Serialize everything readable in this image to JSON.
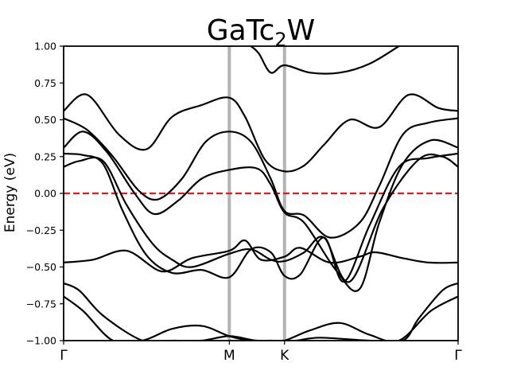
{
  "chart_data": {
    "type": "line",
    "title": {
      "main_before": "GaTc",
      "subscript": "2",
      "main_after": "W"
    },
    "xlabel": "",
    "ylabel": "Energy (eV)",
    "ylim": [
      -1.0,
      1.0
    ],
    "x_range": [
      0,
      2.0
    ],
    "yticks": [
      -1.0,
      -0.75,
      -0.5,
      -0.25,
      0.0,
      0.25,
      0.5,
      0.75,
      1.0
    ],
    "ytick_labels": [
      "−1.00",
      "−0.75",
      "−0.50",
      "−0.25",
      "0.00",
      "0.25",
      "0.50",
      "0.75",
      "1.00"
    ],
    "high_symmetry_points": [
      {
        "label": "Γ",
        "x": 0.0
      },
      {
        "label": "M",
        "x": 0.84
      },
      {
        "label": "K",
        "x": 1.12
      },
      {
        "label": "Γ",
        "x": 2.0
      }
    ],
    "fermi_level": 0.0,
    "grid": false,
    "colors": {
      "bands": "#000000",
      "fermi": "#e31a1c",
      "hsp_lines": "#b3b3b3"
    },
    "series": [
      {
        "x": [
          0.0,
          0.08,
          0.2,
          0.4,
          0.55,
          0.7,
          0.84,
          0.98,
          1.12,
          1.18,
          1.3,
          1.55,
          1.72,
          1.8,
          1.92,
          2.0
        ],
        "values": [
          -0.61,
          -0.66,
          -0.83,
          -1.0,
          -1.0,
          -1.0,
          -0.97,
          -1.0,
          -1.0,
          -1.0,
          -0.98,
          -1.0,
          -1.0,
          -0.85,
          -0.66,
          -0.61
        ]
      },
      {
        "x": [
          0.0,
          0.1,
          0.25,
          0.4,
          0.55,
          0.7,
          0.84,
          0.95,
          1.05,
          1.12,
          1.25,
          1.4,
          1.55,
          1.7,
          1.86,
          2.0
        ],
        "values": [
          -0.7,
          -0.8,
          -1.0,
          -1.0,
          -0.92,
          -0.9,
          -0.97,
          -1.0,
          -1.0,
          -1.0,
          -0.93,
          -0.88,
          -0.96,
          -1.0,
          -0.8,
          -0.7
        ]
      },
      {
        "x": [
          0.0,
          0.15,
          0.32,
          0.5,
          0.65,
          0.84,
          0.92,
          1.0,
          1.12,
          1.2,
          1.35,
          1.5,
          1.58,
          1.72,
          1.85,
          2.0
        ],
        "values": [
          -0.47,
          -0.45,
          -0.39,
          -0.53,
          -0.44,
          -0.39,
          -0.32,
          -0.45,
          -0.43,
          -0.37,
          -0.47,
          -0.43,
          -0.4,
          -0.44,
          -0.47,
          -0.47
        ]
      },
      {
        "x": [
          0.0,
          0.12,
          0.28,
          0.42,
          0.55,
          0.7,
          0.84,
          0.92,
          1.02,
          1.12,
          1.22,
          1.32,
          1.45,
          1.6,
          1.75,
          1.9,
          2.0
        ],
        "values": [
          0.56,
          0.67,
          0.4,
          0.3,
          0.52,
          0.6,
          0.65,
          0.52,
          0.23,
          0.15,
          0.19,
          0.33,
          0.5,
          0.45,
          0.67,
          0.58,
          0.56
        ]
      },
      {
        "x": [
          0.0,
          0.12,
          0.25,
          0.38,
          0.48,
          0.6,
          0.72,
          0.84,
          0.95,
          1.05,
          1.12,
          1.22,
          1.35,
          1.5,
          1.6,
          1.72,
          1.85,
          2.0
        ],
        "values": [
          0.51,
          0.43,
          0.25,
          0.02,
          -0.04,
          0.1,
          0.35,
          0.42,
          0.35,
          0.1,
          -0.12,
          -0.15,
          -0.3,
          -0.2,
          0.05,
          0.4,
          0.48,
          0.51
        ]
      },
      {
        "x": [
          0.0,
          0.1,
          0.22,
          0.36,
          0.46,
          0.58,
          0.7,
          0.84,
          0.98,
          1.05,
          1.12,
          1.22,
          1.38,
          1.5,
          1.6,
          1.72,
          1.86,
          2.0
        ],
        "values": [
          0.31,
          0.42,
          0.28,
          0.0,
          -0.14,
          -0.05,
          0.1,
          0.16,
          0.17,
          0.06,
          -0.13,
          -0.2,
          -0.52,
          -0.65,
          -0.2,
          0.2,
          0.36,
          0.31
        ]
      },
      {
        "x": [
          0.0,
          0.08,
          0.2,
          0.32,
          0.45,
          0.55,
          0.65,
          0.84,
          0.95,
          1.05,
          1.12,
          1.22,
          1.32,
          1.45,
          1.62,
          1.8,
          1.92,
          2.0
        ],
        "values": [
          0.18,
          0.22,
          0.22,
          -0.08,
          -0.34,
          -0.45,
          -0.5,
          -0.41,
          -0.38,
          -0.45,
          -0.46,
          -0.4,
          -0.3,
          -0.6,
          -0.1,
          0.23,
          0.25,
          0.18
        ]
      },
      {
        "x": [
          0.0,
          0.1,
          0.2,
          0.3,
          0.42,
          0.55,
          0.7,
          0.84,
          0.95,
          1.05,
          1.12,
          1.2,
          1.32,
          1.42,
          1.55,
          1.7,
          1.85,
          2.0
        ],
        "values": [
          0.27,
          0.26,
          0.2,
          -0.12,
          -0.42,
          -0.54,
          -0.52,
          -0.57,
          -0.38,
          -0.4,
          -0.56,
          -0.55,
          -0.3,
          -0.6,
          -0.22,
          0.18,
          0.24,
          0.27
        ]
      },
      {
        "x": [
          0.95,
          0.99,
          1.05,
          1.12,
          1.25,
          1.4,
          1.55,
          1.7
        ],
        "values": [
          1.0,
          0.95,
          0.82,
          0.87,
          0.82,
          0.82,
          0.88,
          1.0
        ]
      }
    ]
  }
}
